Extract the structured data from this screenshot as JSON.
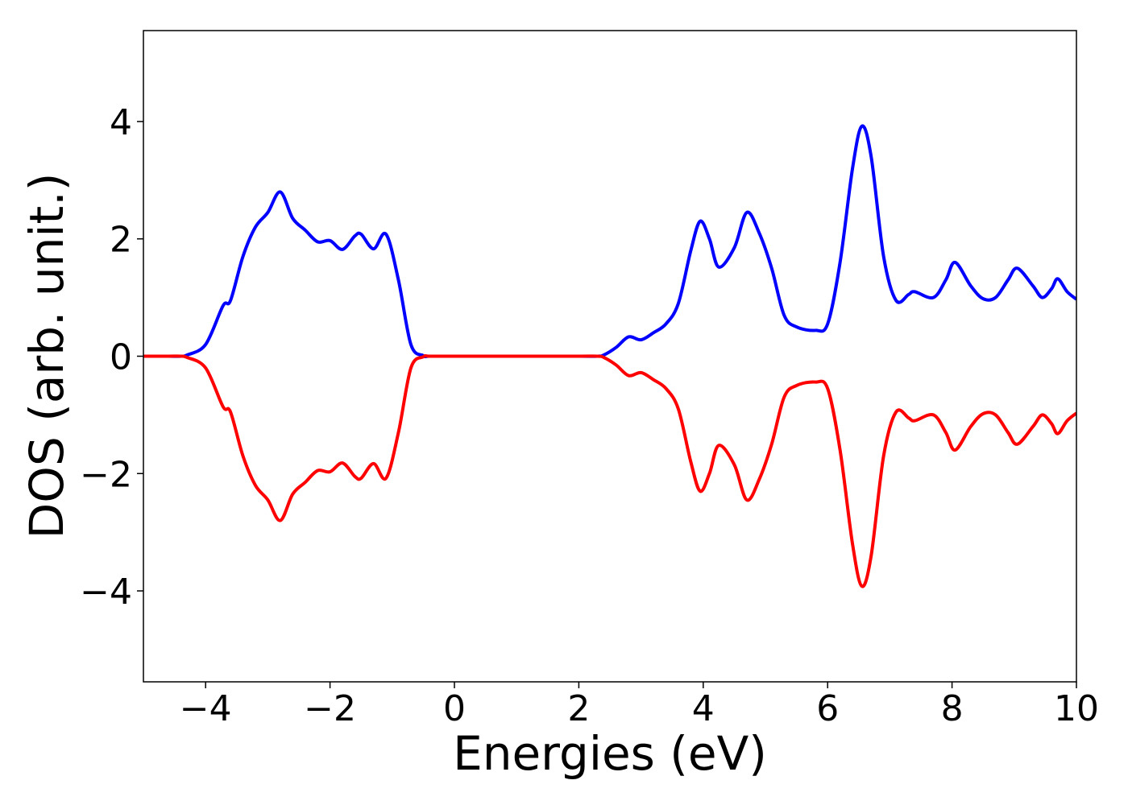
{
  "chart_data": {
    "type": "line",
    "xlabel": "Energies (eV)",
    "ylabel": "DOS (arb. unit.)",
    "x": [
      -5,
      -4.6,
      -4.4,
      -4.3,
      -4.0,
      -3.72,
      -3.6,
      -3.4,
      -3.2,
      -3.0,
      -2.8,
      -2.6,
      -2.4,
      -2.2,
      -2.0,
      -1.8,
      -1.6,
      -1.5,
      -1.3,
      -1.1,
      -0.9,
      -0.7,
      -0.5,
      -0.4,
      0,
      1,
      2,
      2.3,
      2.4,
      2.6,
      2.8,
      3.0,
      3.2,
      3.4,
      3.6,
      3.8,
      3.95,
      4.1,
      4.25,
      4.5,
      4.7,
      4.9,
      5.1,
      5.3,
      5.5,
      5.8,
      6.0,
      6.2,
      6.4,
      6.55,
      6.7,
      6.9,
      7.1,
      7.3,
      7.4,
      7.7,
      7.9,
      8.05,
      8.3,
      8.5,
      8.7,
      8.9,
      9.05,
      9.3,
      9.45,
      9.6,
      9.7,
      9.85,
      10
    ],
    "series": [
      {
        "color": "#0000ff",
        "values": [
          0,
          0,
          0,
          0.02,
          0.2,
          0.86,
          0.95,
          1.7,
          2.2,
          2.45,
          2.8,
          2.35,
          2.15,
          1.95,
          1.97,
          1.82,
          2.05,
          2.08,
          1.83,
          2.08,
          1.3,
          0.2,
          0.01,
          0,
          0,
          0,
          0,
          0,
          0.02,
          0.15,
          0.33,
          0.28,
          0.4,
          0.55,
          0.9,
          1.8,
          2.3,
          2.0,
          1.52,
          1.85,
          2.45,
          2.1,
          1.5,
          0.7,
          0.5,
          0.44,
          0.55,
          1.6,
          3.2,
          3.92,
          3.4,
          1.7,
          0.95,
          1.05,
          1.1,
          1.0,
          1.3,
          1.6,
          1.2,
          0.98,
          1.0,
          1.3,
          1.5,
          1.2,
          1.0,
          1.15,
          1.32,
          1.1,
          0.97
        ]
      },
      {
        "color": "#ff0000",
        "values": [
          0,
          0,
          0,
          -0.02,
          -0.2,
          -0.86,
          -0.95,
          -1.7,
          -2.2,
          -2.45,
          -2.8,
          -2.35,
          -2.15,
          -1.95,
          -1.97,
          -1.82,
          -2.05,
          -2.08,
          -1.83,
          -2.08,
          -1.3,
          -0.2,
          -0.01,
          0,
          0,
          0,
          0,
          0,
          -0.02,
          -0.15,
          -0.33,
          -0.28,
          -0.4,
          -0.55,
          -0.9,
          -1.8,
          -2.3,
          -2.0,
          -1.52,
          -1.85,
          -2.45,
          -2.1,
          -1.5,
          -0.7,
          -0.5,
          -0.44,
          -0.55,
          -1.6,
          -3.2,
          -3.92,
          -3.4,
          -1.7,
          -0.95,
          -1.05,
          -1.1,
          -1.0,
          -1.3,
          -1.6,
          -1.2,
          -0.98,
          -1.0,
          -1.3,
          -1.5,
          -1.2,
          -1.0,
          -1.15,
          -1.32,
          -1.1,
          -0.97
        ]
      }
    ],
    "xlim": [
      -5,
      10
    ],
    "xticks": [
      {
        "value": -4,
        "label": "−4"
      },
      {
        "value": -2,
        "label": "−2"
      },
      0,
      2,
      4,
      6,
      8,
      10
    ],
    "ylim": [
      -5.55,
      5.55
    ],
    "yticks": [
      {
        "value": -4,
        "label": "−4"
      },
      {
        "value": -2,
        "label": "−2"
      },
      0,
      2,
      4
    ],
    "grid": false
  }
}
